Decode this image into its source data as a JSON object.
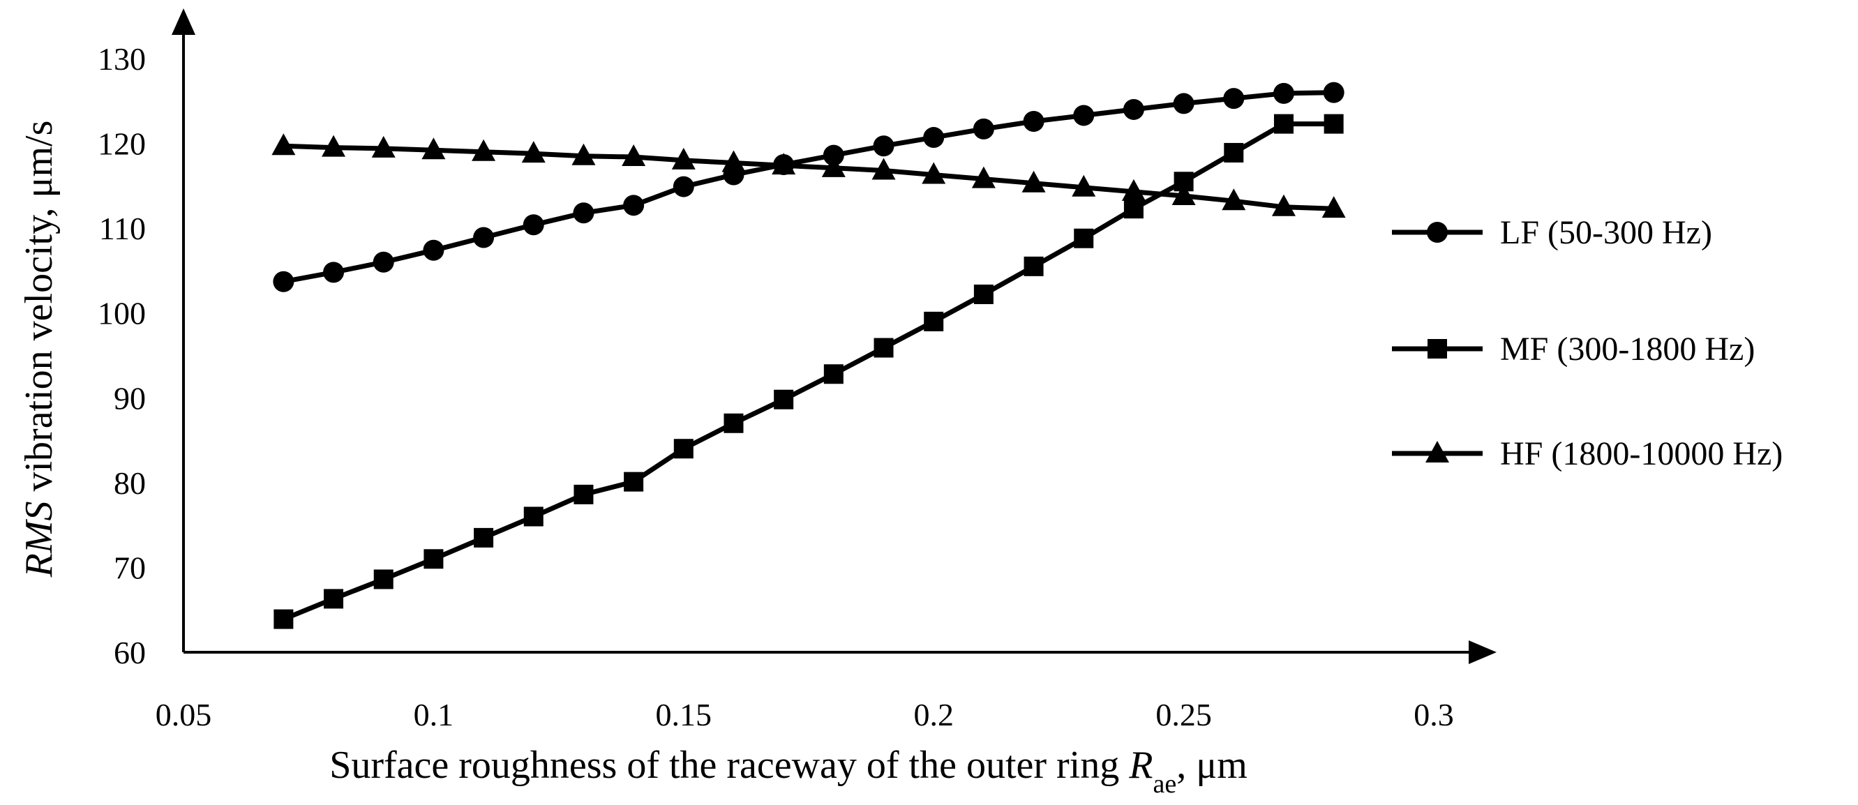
{
  "chart_data": {
    "type": "line",
    "title": "",
    "xlabel": {
      "parts": [
        {
          "text": "Surface roughness of the raceway of the outer ring ",
          "style": "normal"
        },
        {
          "text": "R",
          "style": "italic"
        },
        {
          "text": "ae",
          "style": "sub"
        },
        {
          "text": ", μm",
          "style": "normal"
        }
      ]
    },
    "ylabel": {
      "parts": [
        {
          "text": "RMS",
          "style": "italic"
        },
        {
          "text": " vibration velocity, μm/s",
          "style": "normal"
        }
      ]
    },
    "xlim": [
      0.05,
      0.3
    ],
    "ylim": [
      60,
      130
    ],
    "xticks": [
      "0.05",
      "0.1",
      "0.15",
      "0.2",
      "0.25",
      "0.3"
    ],
    "yticks": [
      "60",
      "70",
      "80",
      "90",
      "100",
      "110",
      "120",
      "130"
    ],
    "grid": false,
    "legend_position": "right",
    "x": [
      0.07,
      0.08,
      0.09,
      0.1,
      0.11,
      0.12,
      0.13,
      0.14,
      0.15,
      0.16,
      0.17,
      0.18,
      0.19,
      0.2,
      0.21,
      0.22,
      0.23,
      0.24,
      0.25,
      0.26,
      0.27,
      0.28
    ],
    "series": [
      {
        "name": "LF (50-300 Hz)",
        "marker": "circle",
        "x": [
          0.07,
          0.08,
          0.09,
          0.1,
          0.11,
          0.12,
          0.13,
          0.14,
          0.15,
          0.16,
          0.17,
          0.18,
          0.19,
          0.2,
          0.21,
          0.22,
          0.23,
          0.24,
          0.25,
          0.26,
          0.27,
          0.28
        ],
        "values": [
          103.7,
          104.8,
          106.0,
          107.4,
          108.9,
          110.4,
          111.8,
          112.7,
          114.9,
          116.3,
          117.5,
          118.6,
          119.7,
          120.7,
          121.7,
          122.6,
          123.3,
          124.0,
          124.7,
          125.3,
          125.9,
          126.0
        ]
      },
      {
        "name": "MF (300-1800 Hz)",
        "marker": "square",
        "x": [
          0.07,
          0.08,
          0.09,
          0.1,
          0.11,
          0.12,
          0.13,
          0.14,
          0.15,
          0.16,
          0.17,
          0.18,
          0.19,
          0.2,
          0.21,
          0.22,
          0.23,
          0.24,
          0.25,
          0.26,
          0.27,
          0.28
        ],
        "values": [
          63.9,
          66.3,
          68.6,
          71.0,
          73.5,
          76.0,
          78.6,
          80.1,
          84.0,
          87.0,
          89.8,
          92.8,
          95.9,
          99.0,
          102.2,
          105.5,
          108.8,
          112.3,
          115.5,
          118.9,
          122.3,
          122.3
        ]
      },
      {
        "name": "HF (1800-10000 Hz)",
        "marker": "triangle",
        "x": [
          0.07,
          0.08,
          0.09,
          0.1,
          0.11,
          0.12,
          0.13,
          0.14,
          0.15,
          0.16,
          0.17,
          0.18,
          0.19,
          0.2,
          0.21,
          0.22,
          0.23,
          0.24,
          0.25,
          0.26,
          0.27,
          0.28
        ],
        "values": [
          119.7,
          119.5,
          119.4,
          119.2,
          119.0,
          118.8,
          118.5,
          118.4,
          118.0,
          117.7,
          117.4,
          117.1,
          116.8,
          116.3,
          115.8,
          115.3,
          114.8,
          114.3,
          113.8,
          113.2,
          112.5,
          112.3
        ]
      }
    ]
  }
}
